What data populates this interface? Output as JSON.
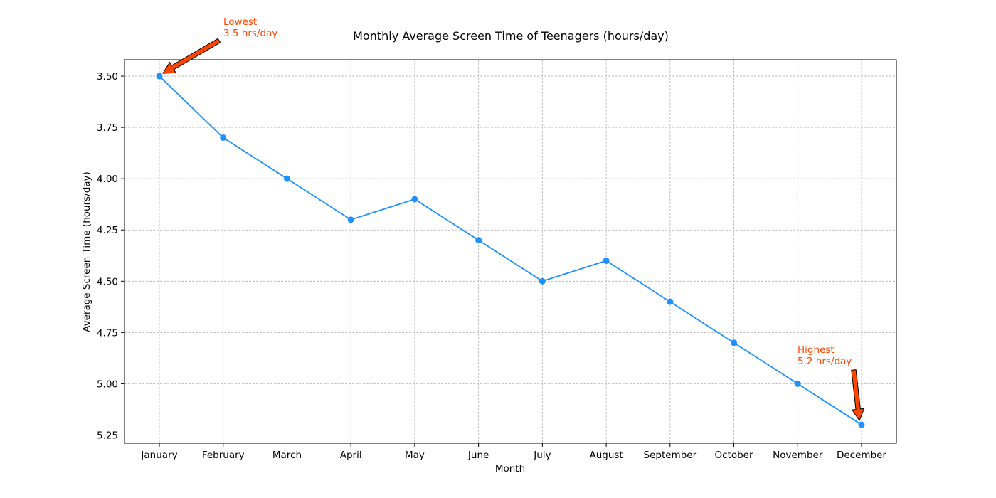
{
  "chart_data": {
    "type": "line",
    "title": "Monthly Average Screen Time of Teenagers (hours/day)",
    "xlabel": "Month",
    "ylabel": "Average Screen Time (hours/day)",
    "categories": [
      "January",
      "February",
      "March",
      "April",
      "May",
      "June",
      "July",
      "August",
      "September",
      "October",
      "November",
      "December"
    ],
    "series": [
      {
        "values": [
          3.5,
          3.8,
          4.0,
          4.2,
          4.1,
          4.3,
          4.5,
          4.4,
          4.6,
          4.8,
          5.0,
          5.2
        ],
        "color": "#1e90ff",
        "marker": "circle"
      }
    ],
    "ylim": [
      3.42,
      5.29
    ],
    "y_inverted": true,
    "yticks": [
      3.5,
      3.75,
      4.0,
      4.25,
      4.5,
      4.75,
      5.0,
      5.25
    ],
    "ytick_labels": [
      "3.50",
      "3.75",
      "4.00",
      "4.25",
      "4.50",
      "4.75",
      "5.00",
      "5.25"
    ],
    "grid": true,
    "annotations": [
      {
        "text_lines": [
          "Lowest",
          "3.5 hrs/day"
        ],
        "category_index": 0,
        "value": 3.5,
        "text_color": "#ff4500",
        "arrow_color": "#ff4500"
      },
      {
        "text_lines": [
          "Highest",
          "5.2 hrs/day"
        ],
        "category_index": 11,
        "value": 5.2,
        "text_color": "#ff4500",
        "arrow_color": "#ff4500"
      }
    ]
  }
}
